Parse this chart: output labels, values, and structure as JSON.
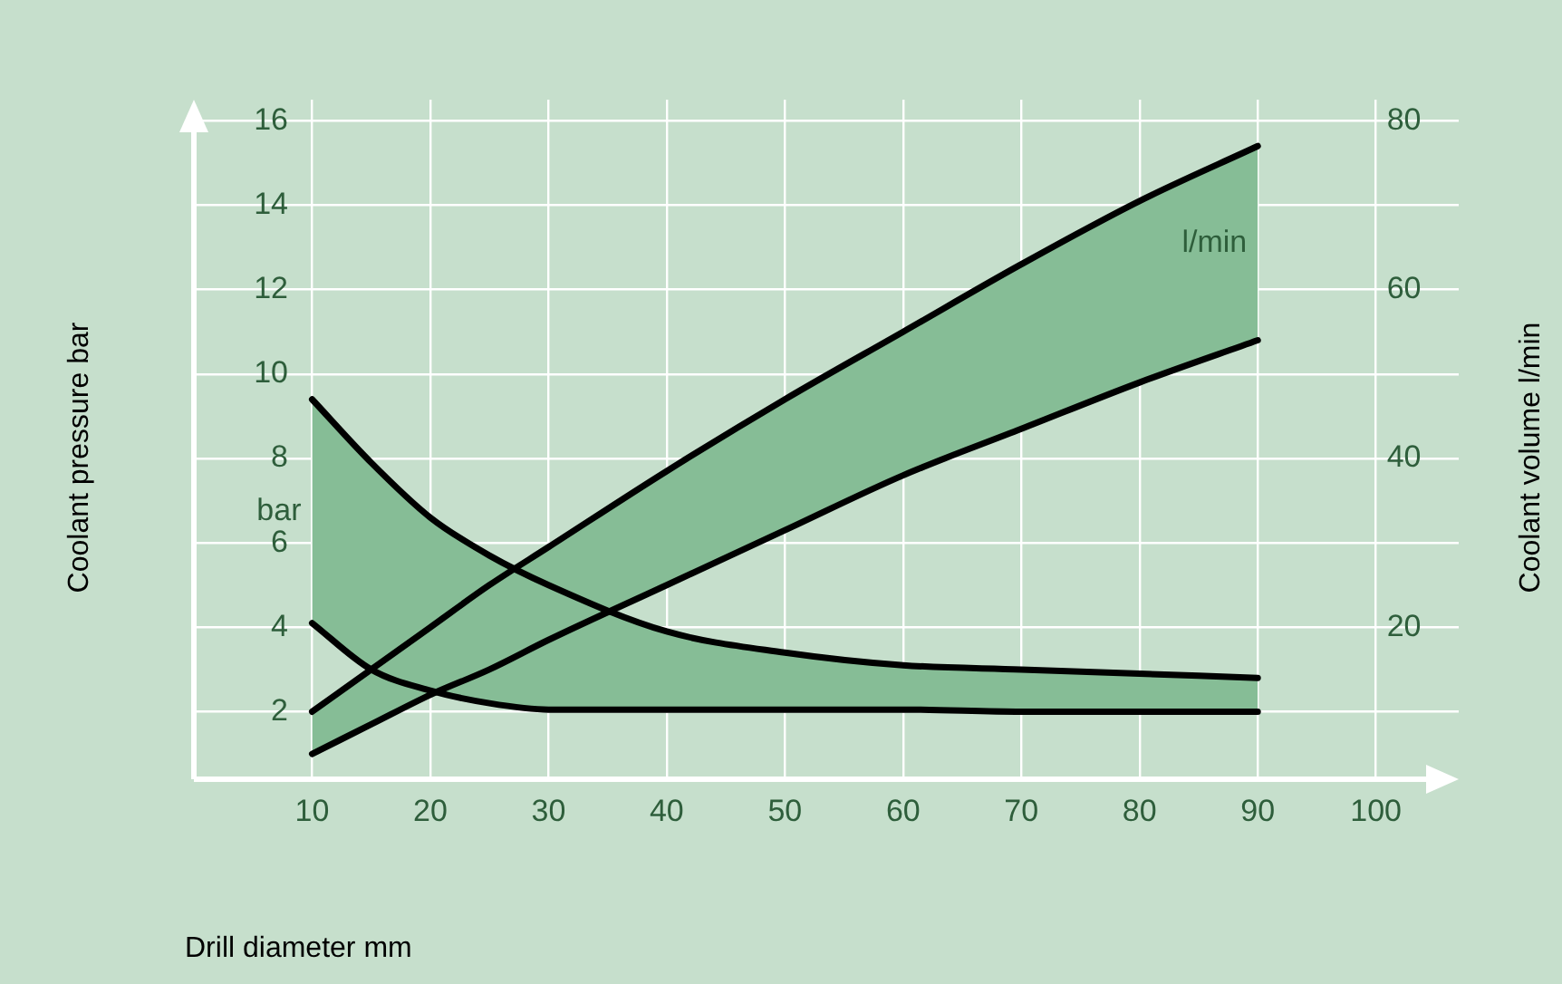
{
  "chart_data": {
    "type": "line",
    "xlabel": "Drill diameter mm",
    "ylabel": "Coolant pressure bar",
    "y2label": "Coolant volume l/min",
    "x": [
      10,
      15,
      20,
      25,
      30,
      40,
      50,
      60,
      70,
      80,
      90
    ],
    "series": [
      {
        "name": "bar",
        "color": "#000000",
        "values": [
          9.4,
          7.9,
          6.6,
          5.7,
          5.0,
          3.9,
          3.4,
          3.1,
          3.0,
          2.9,
          2.8
        ],
        "lower": [
          4.1,
          3.0,
          2.5,
          2.2,
          2.05,
          2.05,
          2.05,
          2.05,
          2.0,
          2.0,
          2.0
        ],
        "upper": [
          9.4,
          7.9,
          6.6,
          5.7,
          5.0,
          3.9,
          3.4,
          3.1,
          3.0,
          2.9,
          2.8
        ]
      },
      {
        "color": "#000000",
        "values": [
          4.1,
          3.0,
          2.5,
          2.2,
          2.05,
          2.05,
          2.05,
          2.05,
          2.0,
          2.0,
          2.0
        ]
      },
      {
        "name": "l/min",
        "axis": "y2",
        "color": "#000000",
        "values": [
          10,
          15,
          20,
          25,
          29.5,
          38.5,
          47,
          55,
          63,
          70.5,
          77
        ],
        "lower": [
          5,
          8.5,
          12,
          15,
          18.5,
          25,
          31.5,
          38,
          43.5,
          49,
          54
        ],
        "upper": [
          10,
          15,
          20,
          25,
          29.5,
          38.5,
          47,
          55,
          63,
          70.5,
          77
        ]
      },
      {
        "axis": "y2",
        "color": "#000000",
        "values": [
          5,
          8.5,
          12,
          15,
          18.5,
          25,
          31.5,
          38,
          43.5,
          49,
          54
        ]
      }
    ],
    "xlim": [
      0,
      107
    ],
    "xticks": [
      10,
      20,
      30,
      40,
      50,
      60,
      70,
      80,
      90,
      100
    ],
    "ylim": [
      0.4,
      16.5
    ],
    "yticks": [
      2,
      4,
      6,
      8,
      10,
      12,
      14,
      16
    ],
    "y2lim": [
      2,
      82.5
    ],
    "y2ticks": [
      20,
      40,
      60,
      80
    ],
    "grid": true,
    "legend": false
  }
}
